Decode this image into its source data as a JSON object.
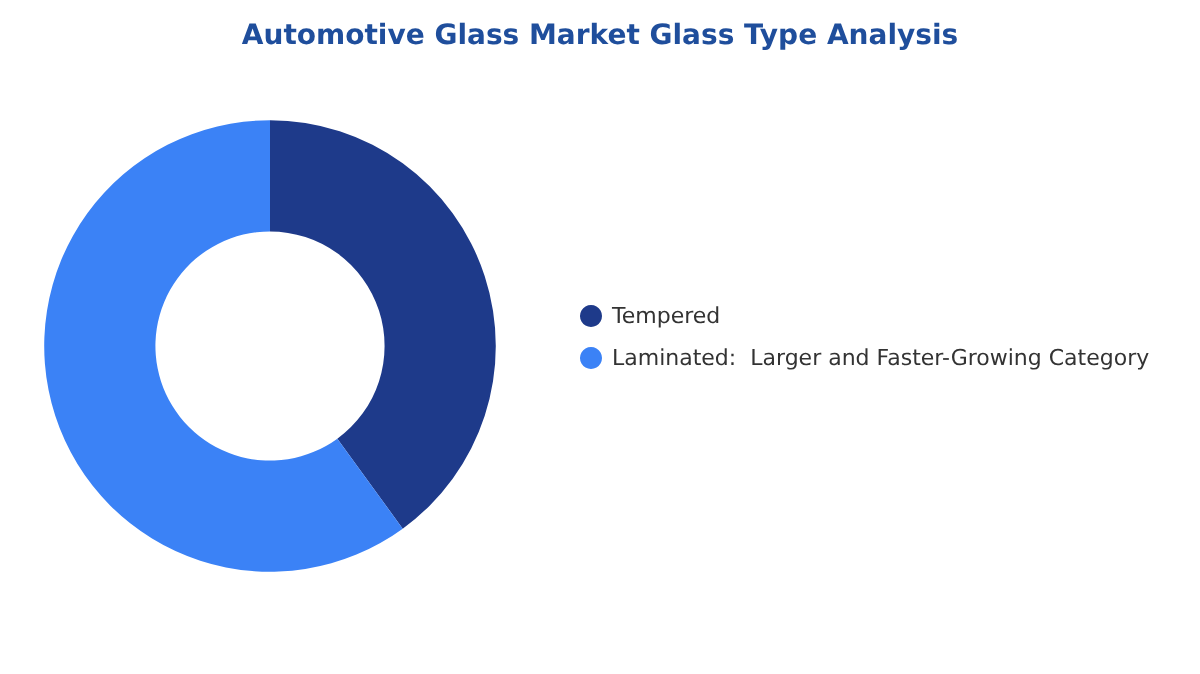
{
  "chart_data": {
    "type": "donut",
    "title": "Automotive Glass Market Glass Type Analysis",
    "categories": [
      "Tempered",
      "Laminated:  Larger and Faster-Growing Category"
    ],
    "values": [
      40,
      60
    ],
    "colors": [
      "#1e3a8a",
      "#3b82f6"
    ],
    "legend": "right"
  }
}
